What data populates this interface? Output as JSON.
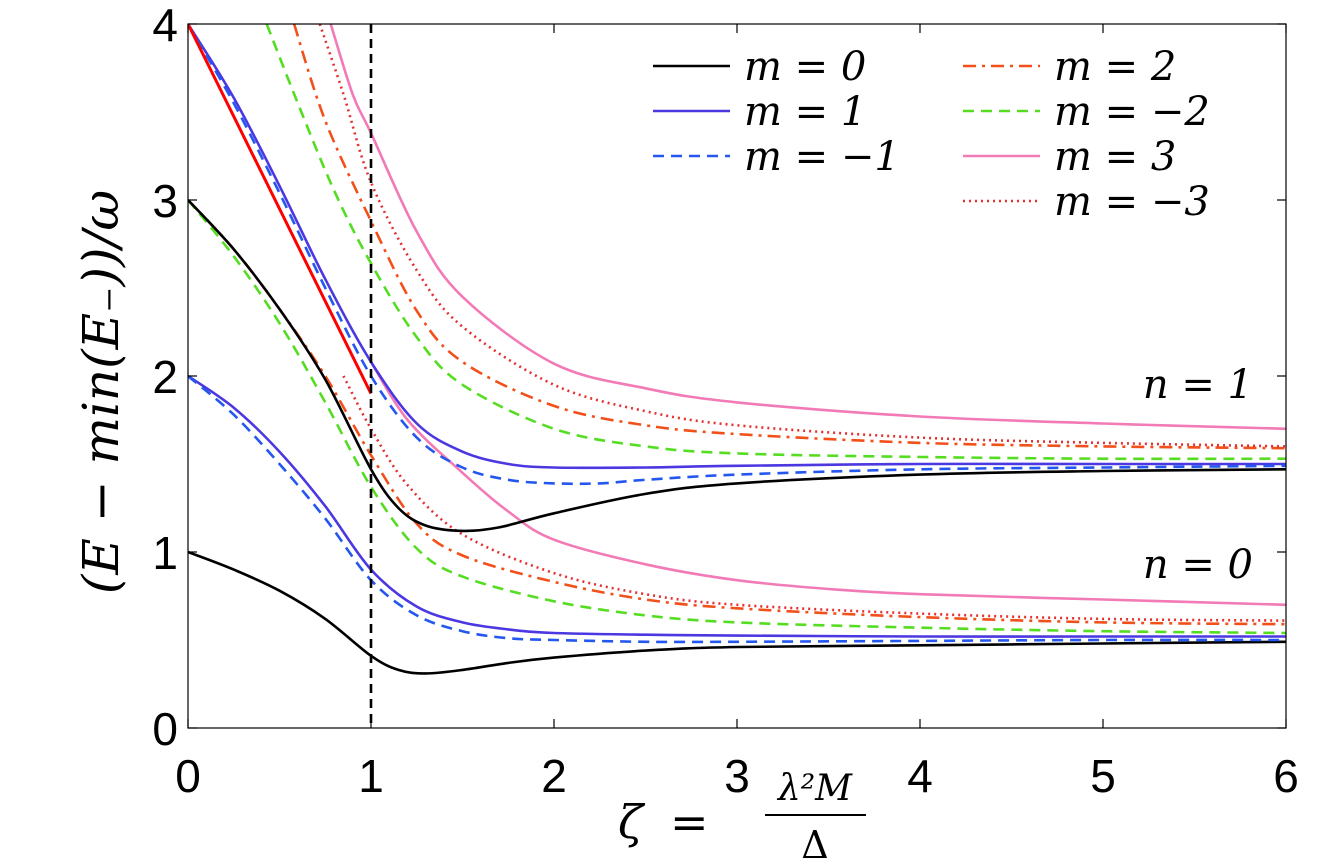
{
  "chart_data": {
    "type": "line",
    "xlim": [
      0,
      6
    ],
    "ylim": [
      0,
      4
    ],
    "xticks": [
      "0",
      "1",
      "2",
      "3",
      "4",
      "5",
      "6"
    ],
    "yticks": [
      "0",
      "1",
      "2",
      "3",
      "4"
    ],
    "xlabel": "ζ = λ²M / Δ",
    "xlabel_parts": {
      "lhs": "ζ",
      "eq": "=",
      "num": "λ²M",
      "den": "Δ"
    },
    "ylabel": "(E − min(E₋))/ω",
    "grid": false,
    "legend_placement": "top-right",
    "legend": [
      {
        "label": "m = 0",
        "color": "#000000",
        "dash": "solid"
      },
      {
        "label": "m = 1",
        "color": "#4b38e0",
        "dash": "solid"
      },
      {
        "label": "m = −1",
        "color": "#2457f0",
        "dash": "dashed"
      },
      {
        "label": "m = 2",
        "color": "#f2501a",
        "dash": "dashdot"
      },
      {
        "label": "m = −2",
        "color": "#55dd22",
        "dash": "dashed"
      },
      {
        "label": "m = 3",
        "color": "#f27ab6",
        "dash": "solid"
      },
      {
        "label": "m = −3",
        "color": "#e53030",
        "dash": "dotted"
      }
    ],
    "annotations": [
      {
        "text": "n = 1",
        "x": 5.8,
        "y": 1.88
      },
      {
        "text": "n = 0",
        "x": 5.8,
        "y": 0.88
      }
    ],
    "vline": {
      "x": 1,
      "color": "#000000",
      "dash": "dashed"
    },
    "series": [
      {
        "name": "m = 0",
        "branch": "n = 0",
        "color": "#000000",
        "dash": "solid",
        "x": [
          0,
          0.25,
          0.5,
          0.75,
          1.0,
          1.15,
          1.3,
          1.5,
          1.75,
          2.0,
          2.5,
          3.0,
          4.0,
          5.0,
          6.0
        ],
        "y": [
          1.0,
          0.9,
          0.78,
          0.62,
          0.41,
          0.33,
          0.31,
          0.33,
          0.37,
          0.4,
          0.44,
          0.46,
          0.47,
          0.48,
          0.49
        ]
      },
      {
        "name": "m = 1",
        "branch": "n = 0",
        "color": "#4b38e0",
        "dash": "solid",
        "x": [
          0,
          0.25,
          0.5,
          0.75,
          1.0,
          1.25,
          1.5,
          1.75,
          2.0,
          2.5,
          3.0,
          4.0,
          5.0,
          6.0
        ],
        "y": [
          2.0,
          1.82,
          1.57,
          1.26,
          0.9,
          0.69,
          0.6,
          0.56,
          0.54,
          0.53,
          0.525,
          0.52,
          0.52,
          0.52
        ]
      },
      {
        "name": "m = −1",
        "branch": "n = 0",
        "color": "#2457f0",
        "dash": "dashed",
        "x": [
          0,
          0.25,
          0.5,
          0.75,
          1.0,
          1.25,
          1.5,
          1.75,
          2.0,
          2.5,
          3.0,
          4.0,
          5.0,
          6.0
        ],
        "y": [
          2.0,
          1.78,
          1.5,
          1.19,
          0.84,
          0.64,
          0.55,
          0.51,
          0.5,
          0.49,
          0.49,
          0.495,
          0.5,
          0.5
        ]
      },
      {
        "name": "m = 2",
        "branch": "n = 0",
        "color": "#f2501a",
        "dash": "dashdot",
        "x": [
          0,
          0.25,
          0.5,
          0.75,
          1.0,
          1.25,
          1.5,
          2.0,
          2.5,
          3.0,
          4.0,
          5.0,
          6.0
        ],
        "y": [
          3.0,
          2.72,
          2.38,
          2.0,
          1.55,
          1.16,
          0.98,
          0.83,
          0.73,
          0.68,
          0.63,
          0.6,
          0.59
        ]
      },
      {
        "name": "m = −2",
        "branch": "n = 0",
        "color": "#55dd22",
        "dash": "dashed",
        "x": [
          0,
          0.25,
          0.5,
          0.75,
          1.0,
          1.25,
          1.5,
          2.0,
          2.5,
          3.0,
          4.0,
          5.0,
          6.0
        ],
        "y": [
          3.0,
          2.68,
          2.3,
          1.85,
          1.37,
          1.02,
          0.86,
          0.72,
          0.64,
          0.6,
          0.57,
          0.55,
          0.54
        ]
      },
      {
        "name": "m = 3",
        "branch": "n = 0",
        "color": "#f27ab6",
        "dash": "solid",
        "x": [
          1.0,
          1.2,
          1.5,
          1.75,
          2.0,
          2.5,
          3.0,
          3.5,
          4.0,
          5.0,
          6.0
        ],
        "y": [
          2.08,
          1.75,
          1.45,
          1.23,
          1.07,
          0.93,
          0.84,
          0.79,
          0.76,
          0.73,
          0.7
        ]
      },
      {
        "name": "m = −3",
        "branch": "n = 0",
        "color": "#e53030",
        "dash": "dotted",
        "x": [
          0.85,
          1.0,
          1.2,
          1.5,
          2.0,
          2.5,
          3.0,
          4.0,
          5.0,
          6.0
        ],
        "y": [
          2.0,
          1.7,
          1.38,
          1.1,
          0.88,
          0.76,
          0.7,
          0.65,
          0.62,
          0.61
        ]
      },
      {
        "name": "m = 0",
        "branch": "n = 1",
        "color": "#000000",
        "dash": "solid",
        "x": [
          0,
          0.25,
          0.5,
          0.75,
          1.0,
          1.15,
          1.3,
          1.5,
          1.7,
          2.0,
          2.5,
          3.0,
          4.0,
          5.0,
          6.0
        ],
        "y": [
          3.0,
          2.72,
          2.38,
          1.98,
          1.47,
          1.25,
          1.15,
          1.12,
          1.14,
          1.22,
          1.33,
          1.39,
          1.44,
          1.46,
          1.47
        ]
      },
      {
        "name": "m = 1",
        "branch": "n = 1",
        "color": "#4b38e0",
        "dash": "solid",
        "x": [
          0,
          0.25,
          0.5,
          0.75,
          1.0,
          1.25,
          1.5,
          1.75,
          2.0,
          2.5,
          3.0,
          4.0,
          5.0,
          6.0
        ],
        "y": [
          4.0,
          3.58,
          3.08,
          2.55,
          2.08,
          1.73,
          1.57,
          1.5,
          1.48,
          1.48,
          1.49,
          1.5,
          1.5,
          1.5
        ]
      },
      {
        "name": "m = −1",
        "branch": "n = 1",
        "color": "#2457f0",
        "dash": "dashed",
        "x": [
          0,
          0.25,
          0.5,
          0.75,
          1.0,
          1.25,
          1.5,
          1.75,
          2.0,
          2.25,
          2.5,
          3.0,
          4.0,
          5.0,
          6.0
        ],
        "y": [
          4.0,
          3.55,
          3.04,
          2.5,
          2.0,
          1.65,
          1.48,
          1.41,
          1.39,
          1.39,
          1.41,
          1.44,
          1.47,
          1.48,
          1.49
        ]
      },
      {
        "name": "m = 2",
        "branch": "n = 1",
        "color": "#f2501a",
        "dash": "dashdot",
        "x": [
          0.58,
          0.75,
          1.0,
          1.25,
          1.5,
          2.0,
          2.5,
          3.0,
          4.0,
          5.0,
          6.0
        ],
        "y": [
          4.0,
          3.45,
          2.88,
          2.37,
          2.08,
          1.83,
          1.72,
          1.67,
          1.62,
          1.6,
          1.59
        ]
      },
      {
        "name": "m = −2",
        "branch": "n = 1",
        "color": "#55dd22",
        "dash": "dashed",
        "x": [
          0.43,
          0.6,
          0.8,
          1.0,
          1.25,
          1.5,
          2.0,
          2.5,
          3.0,
          4.0,
          5.0,
          6.0
        ],
        "y": [
          4.0,
          3.55,
          3.05,
          2.64,
          2.22,
          1.95,
          1.7,
          1.6,
          1.56,
          1.54,
          1.53,
          1.53
        ]
      },
      {
        "name": "m = 3",
        "branch": "n = 1",
        "color": "#f27ab6",
        "dash": "solid",
        "x": [
          0.78,
          0.9,
          1.0,
          1.25,
          1.5,
          2.0,
          2.5,
          3.0,
          4.0,
          5.0,
          6.0
        ],
        "y": [
          4.0,
          3.6,
          3.38,
          2.82,
          2.45,
          2.07,
          1.93,
          1.85,
          1.77,
          1.73,
          1.7
        ]
      },
      {
        "name": "m = −3",
        "branch": "n = 1",
        "color": "#e53030",
        "dash": "dotted",
        "x": [
          0.72,
          0.85,
          1.0,
          1.25,
          1.5,
          2.0,
          2.5,
          3.0,
          4.0,
          5.0,
          6.0
        ],
        "y": [
          4.0,
          3.6,
          3.1,
          2.6,
          2.28,
          1.95,
          1.8,
          1.72,
          1.65,
          1.62,
          1.6
        ]
      },
      {
        "name": "",
        "branch": "asymptote",
        "color": "#ff0000",
        "dash": "solid",
        "x": [
          0,
          1.0
        ],
        "y": [
          4.0,
          1.9
        ]
      }
    ]
  }
}
